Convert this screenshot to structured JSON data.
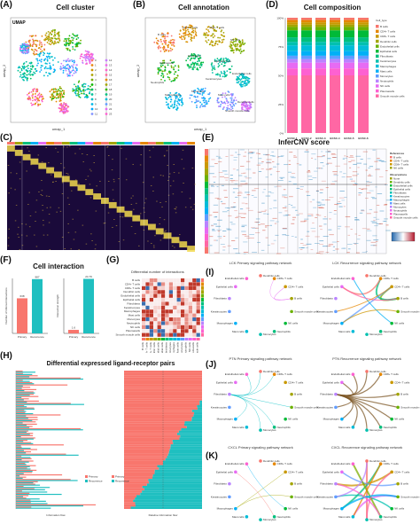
{
  "panels": {
    "A": {
      "label": "(A)",
      "title": "Cell cluster",
      "inner": "UMAP",
      "xlabel": "umap_1",
      "ylabel": "umap_2",
      "legend": [
        "0",
        "1",
        "2",
        "3",
        "4",
        "5",
        "6",
        "7",
        "8",
        "9",
        "10",
        "11",
        "12",
        "13",
        "14",
        "15",
        "16",
        "17",
        "18",
        "19",
        "20",
        "21",
        "22",
        "23"
      ]
    },
    "B": {
      "label": "(B)",
      "title": "Cell annotation",
      "xlabel": "umap_1",
      "ylabel": "umap_2",
      "cell_labels": [
        "B cells",
        "CD4+ T cells",
        "CD8+ T cells",
        "NK cells",
        "Plasmacells",
        "Fibroblasts",
        "Epithelial cells",
        "Endothelial cells",
        "Macrophages",
        "Monocytes",
        "Mast cells",
        "Dendritic cells",
        "Neutrophils",
        "Keratinocytes",
        "Smooth muscle cells"
      ]
    },
    "C": {
      "label": "(C)"
    },
    "D": {
      "label": "(D)",
      "title": "Cell composition",
      "legend_title": "Cell_type",
      "yticks": [
        "100%",
        "75%",
        "50%",
        "25%",
        "0%"
      ],
      "categories": [
        "BCSC-1",
        "BCSC-2",
        "BCSC-3",
        "BCSC-4",
        "BCSC-5",
        "BCSC-6"
      ],
      "legend": [
        "B cells",
        "CD4+ T cells",
        "CD8+ T cells",
        "Dendritic cells",
        "Endothelial cells",
        "Epithelial cells",
        "Fibroblasts",
        "Keratinocytes",
        "Macrophages",
        "Mast cells",
        "Monocytes",
        "Neutrophils",
        "NK cells",
        "Plasmacells",
        "Smooth muscle cells"
      ]
    },
    "E": {
      "label": "(E)",
      "title": "InferCNV score",
      "ref_title": "References",
      "refs": [
        "B cells",
        "CD4+ T cells",
        "CD8+ T cells",
        "NK cells"
      ],
      "obs_title": "Observations",
      "obs": [
        "None",
        "Dendritic cells",
        "Endothelial cells",
        "Epithelial cells",
        "Fibroblasts",
        "Keratinocytes",
        "Macrophages",
        "Mast cells",
        "Monocytes",
        "Neutrophils",
        "Plasmacells",
        "Smooth muscle cells"
      ]
    },
    "F": {
      "label": "(F)",
      "title": "Cell interaction",
      "left": {
        "ylabel": "Number of inferred interactions",
        "categories": [
          "Primary",
          "Recurrence"
        ],
        "values": [
          638,
          987
        ]
      },
      "right": {
        "ylabel": "Interaction strength",
        "categories": [
          "Primary",
          "Recurrence"
        ],
        "values": [
          1.6,
          24.79
        ]
      }
    },
    "G": {
      "label": "(G)",
      "title": "Differential number of interactions",
      "rows": [
        "B cells",
        "CD4+ T cells",
        "CD8+ T cells",
        "Dendritic cells",
        "Endothelial cells",
        "Epithelial cells",
        "Fibroblasts",
        "Keratinocytes",
        "Macrophages",
        "Mast cells",
        "Monocytes",
        "Neutrophils",
        "NK cells",
        "Plasmacells",
        "Smooth muscle cells"
      ]
    },
    "H": {
      "label": "(H)",
      "title": "Differential expressed ligand-receptor pairs",
      "legend": [
        "Primary",
        "Recurrence"
      ],
      "left_xlabel": "Information flow",
      "right_xlabel": "Relative information flow"
    },
    "I": {
      "label": "(I)",
      "title_left": "LCK Primary signaling pathway network",
      "title_right": "LCK Recurrence signaling pathway network"
    },
    "J": {
      "label": "(J)",
      "title_left": "PTN Primary signaling pathway network",
      "title_right": "PTN Recurrence signaling pathway network"
    },
    "K": {
      "label": "(K)",
      "title_left": "CXCL Primary signaling pathway network",
      "title_right": "CXCL Recurrence signaling pathway network"
    }
  },
  "net_nodes": [
    "Dendritic cells",
    "CD8+ T cells",
    "CD4+ T cells",
    "B cells",
    "Smooth muscle cells",
    "NK cells",
    "Neutrophils",
    "Monocytes",
    "Mast cells",
    "Macrophages",
    "Keratinocytes",
    "Fibroblasts",
    "Epithelial cells",
    "Endothelial cells"
  ],
  "colors": {
    "cell_types": [
      "#f8766d",
      "#e58700",
      "#c99800",
      "#a3a500",
      "#6bb100",
      "#00ba38",
      "#00bf7d",
      "#00c0af",
      "#00bcd8",
      "#00b0f6",
      "#619cff",
      "#b983ff",
      "#e76bf3",
      "#fd61d1",
      "#ff67a4"
    ],
    "primary": "#f8766d",
    "recurrence": "#1fbfc0"
  }
}
